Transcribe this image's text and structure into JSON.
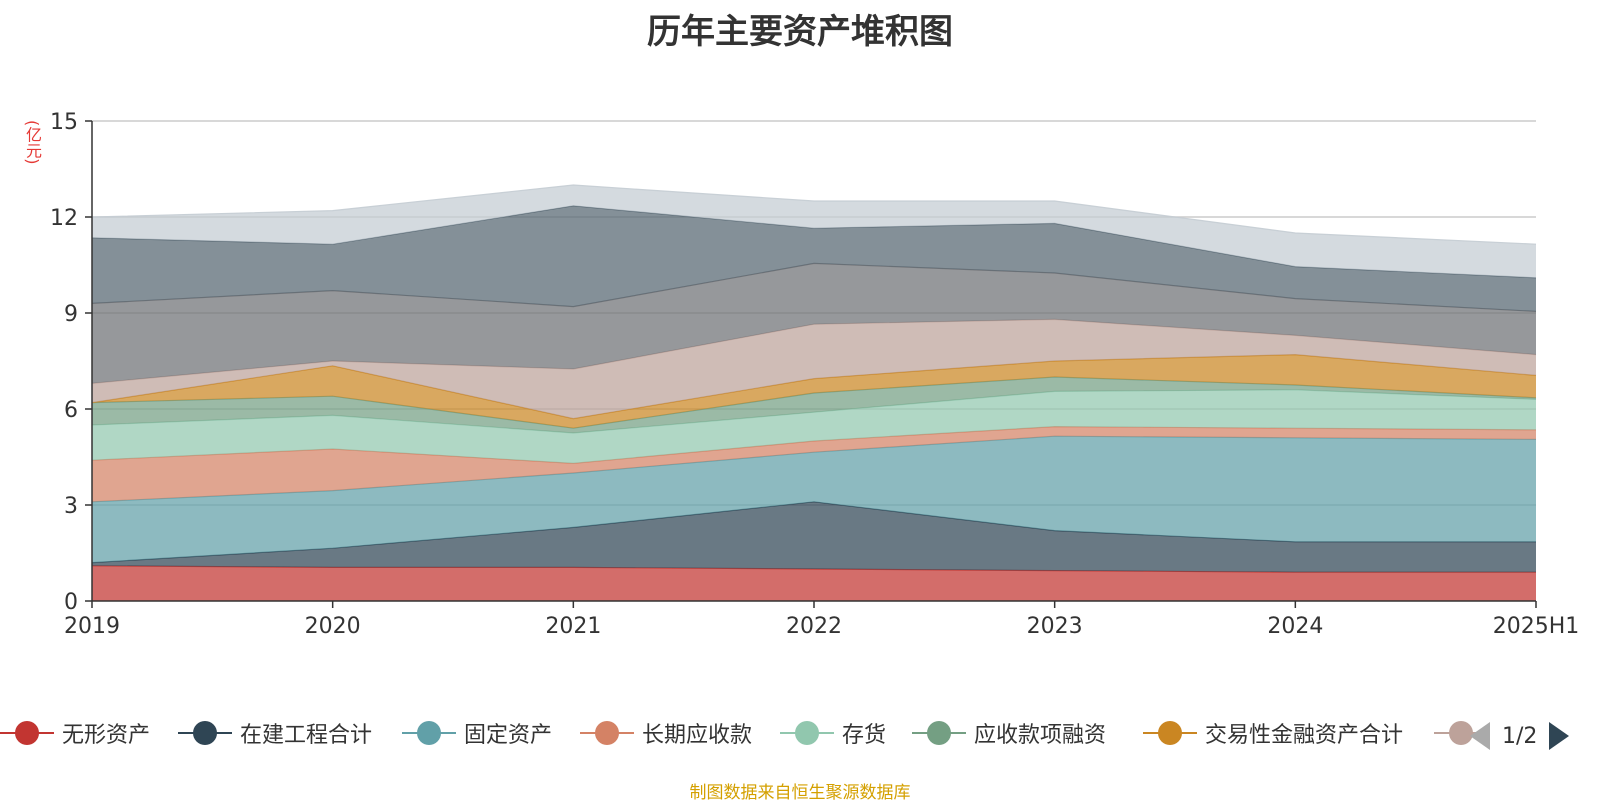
{
  "chart_data": {
    "type": "area",
    "title": "历年主要资产堆积图",
    "ylabel": "(亿元)",
    "xlabel": "",
    "categories": [
      "2019",
      "2020",
      "2021",
      "2022",
      "2023",
      "2024",
      "2025H1"
    ],
    "ylim": [
      0,
      15
    ],
    "yticks": [
      0,
      3,
      6,
      9,
      12,
      15
    ],
    "stacked": true,
    "grid": true,
    "series": [
      {
        "name": "无形资产",
        "color": "#c23531",
        "values": [
          1.1,
          1.05,
          1.05,
          1.0,
          0.95,
          0.9,
          0.9
        ]
      },
      {
        "name": "在建工程合计",
        "color": "#2f4554",
        "values": [
          0.1,
          0.6,
          1.25,
          2.1,
          1.25,
          0.95,
          0.95
        ]
      },
      {
        "name": "固定资产",
        "color": "#61a0a8",
        "values": [
          1.9,
          1.8,
          1.7,
          1.55,
          2.95,
          3.25,
          3.2
        ]
      },
      {
        "name": "长期应收款",
        "color": "#d48265",
        "values": [
          1.3,
          1.3,
          0.3,
          0.35,
          0.3,
          0.3,
          0.3
        ]
      },
      {
        "name": "存货",
        "color": "#91c7ae",
        "values": [
          1.1,
          1.05,
          0.95,
          0.9,
          1.1,
          1.2,
          0.95
        ]
      },
      {
        "name": "应收款项融资",
        "color": "#749f83",
        "values": [
          0.7,
          0.6,
          0.15,
          0.6,
          0.45,
          0.15,
          0.05
        ]
      },
      {
        "name": "交易性金融资产合计",
        "color": "#ca8622",
        "values": [
          0.0,
          0.95,
          0.3,
          0.45,
          0.5,
          0.95,
          0.7
        ]
      },
      {
        "name": "",
        "color": "#bda29a",
        "values": [
          0.6,
          0.15,
          1.55,
          1.7,
          1.3,
          0.6,
          0.65
        ]
      },
      {
        "name": "",
        "color": "#6e7074",
        "values": [
          2.5,
          2.2,
          1.95,
          1.9,
          1.45,
          1.15,
          1.35
        ]
      },
      {
        "name": "",
        "color": "#546570",
        "values": [
          2.05,
          1.45,
          3.15,
          1.1,
          1.55,
          1.0,
          1.05
        ]
      },
      {
        "name": "",
        "color": "#c4ccd3",
        "values": [
          0.65,
          1.05,
          0.65,
          0.85,
          0.7,
          1.05,
          1.05
        ]
      }
    ]
  },
  "legend": {
    "items": [
      "无形资产",
      "在建工程合计",
      "固定资产",
      "长期应收款",
      "存货",
      "应收款项融资",
      "交易性金融资产合计",
      ""
    ],
    "page": "1/2"
  },
  "source": "制图数据来自恒生聚源数据库"
}
